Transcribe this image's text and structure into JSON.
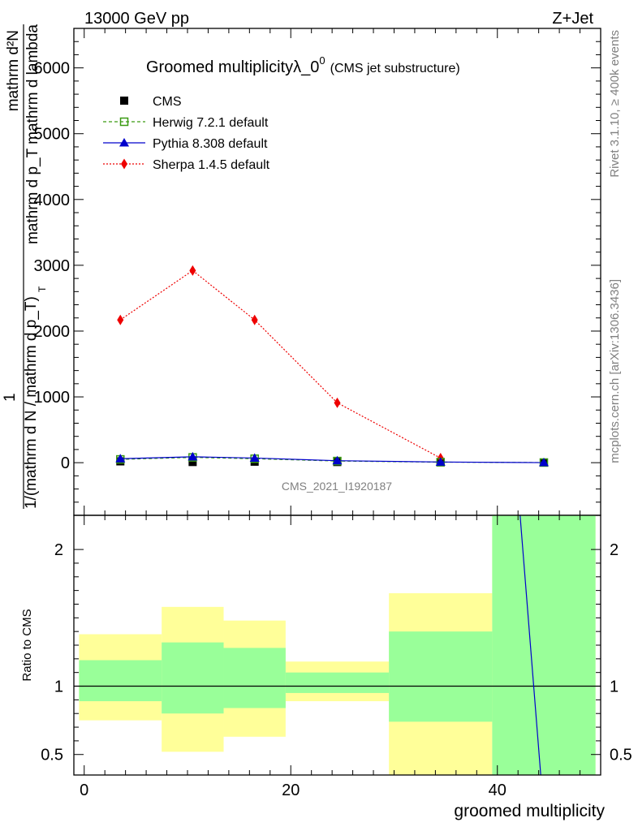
{
  "header": {
    "left": "13000 GeV pp",
    "right": "Z+Jet"
  },
  "side_labels": {
    "rivet": "Rivet 3.1.10, ≥ 400k events",
    "mcplots": "mcplots.cern.ch [arXiv:1306.3436]"
  },
  "watermark": "CMS_2021_I1920187",
  "chart_data": [
    {
      "type": "line",
      "title": "Groomed multiplicityλ_0",
      "title_sup": "0",
      "subtitle": "(CMS jet substructure)",
      "ylabel_top": {
        "numerator": "mathrm d²N",
        "denominator": "mathrm d p_T mathrm d lambda"
      },
      "ylabel_bottom": "1/(mathrm d N / mathrm d p_T)",
      "ylabel_sub": "T",
      "xlim": [
        -1,
        50
      ],
      "ylim": [
        -800,
        6600
      ],
      "yticks": [
        0,
        1000,
        2000,
        3000,
        4000,
        5000,
        6000
      ],
      "ytick_labels": [
        "0",
        "1000",
        "2000",
        "3000",
        "4000",
        "5000",
        "6000"
      ],
      "x": [
        3.5,
        10.5,
        16.5,
        24.5,
        34.5,
        44.5
      ],
      "series": [
        {
          "name": "CMS",
          "color": "#000000",
          "marker": "square-filled",
          "values": [
            20,
            10,
            15,
            10,
            5,
            2
          ]
        },
        {
          "name": "Herwig 7.2.1 default",
          "color": "#3a9a12",
          "marker": "square-open",
          "style": "dashed",
          "values": [
            50,
            80,
            60,
            25,
            8,
            2
          ]
        },
        {
          "name": "Pythia 8.308 default",
          "color": "#0000cc",
          "marker": "triangle",
          "style": "solid",
          "values": [
            60,
            90,
            70,
            30,
            10,
            1
          ]
        },
        {
          "name": "Sherpa 1.4.5 default",
          "color": "#ee0000",
          "marker": "diamond",
          "style": "dotted",
          "values": [
            2170,
            2920,
            2170,
            910,
            70,
            null
          ]
        }
      ]
    },
    {
      "type": "bar",
      "ylabel": "Ratio to CMS",
      "xlabel": "groomed multiplicity",
      "xlim": [
        -1,
        50
      ],
      "ylim": [
        0.35,
        2.25
      ],
      "xticks": [
        0,
        20,
        40
      ],
      "xtick_labels": [
        "0",
        "20",
        "40"
      ],
      "yticks": [
        0.5,
        1,
        2
      ],
      "ytick_labels": [
        "0.5",
        "1",
        "2"
      ],
      "bins": [
        [
          -0.5,
          7.5
        ],
        [
          7.5,
          13.5
        ],
        [
          13.5,
          19.5
        ],
        [
          19.5,
          29.5
        ],
        [
          29.5,
          39.5
        ],
        [
          39.5,
          49.5
        ]
      ],
      "band_outer": {
        "color": "#ffff99",
        "low": [
          0.75,
          0.52,
          0.63,
          0.89,
          0.35,
          0.35
        ],
        "high": [
          1.38,
          1.58,
          1.48,
          1.18,
          1.68,
          2.25
        ]
      },
      "band_inner": {
        "color": "#99ff99",
        "low": [
          0.89,
          0.8,
          0.84,
          0.95,
          0.74,
          0.35
        ],
        "high": [
          1.19,
          1.32,
          1.28,
          1.1,
          1.4,
          2.25
        ]
      },
      "reference": 1,
      "pythia_ratio_line": {
        "color": "#0000cc",
        "x": [
          42.2,
          44.2
        ],
        "y": [
          2.25,
          0.35
        ]
      }
    }
  ]
}
